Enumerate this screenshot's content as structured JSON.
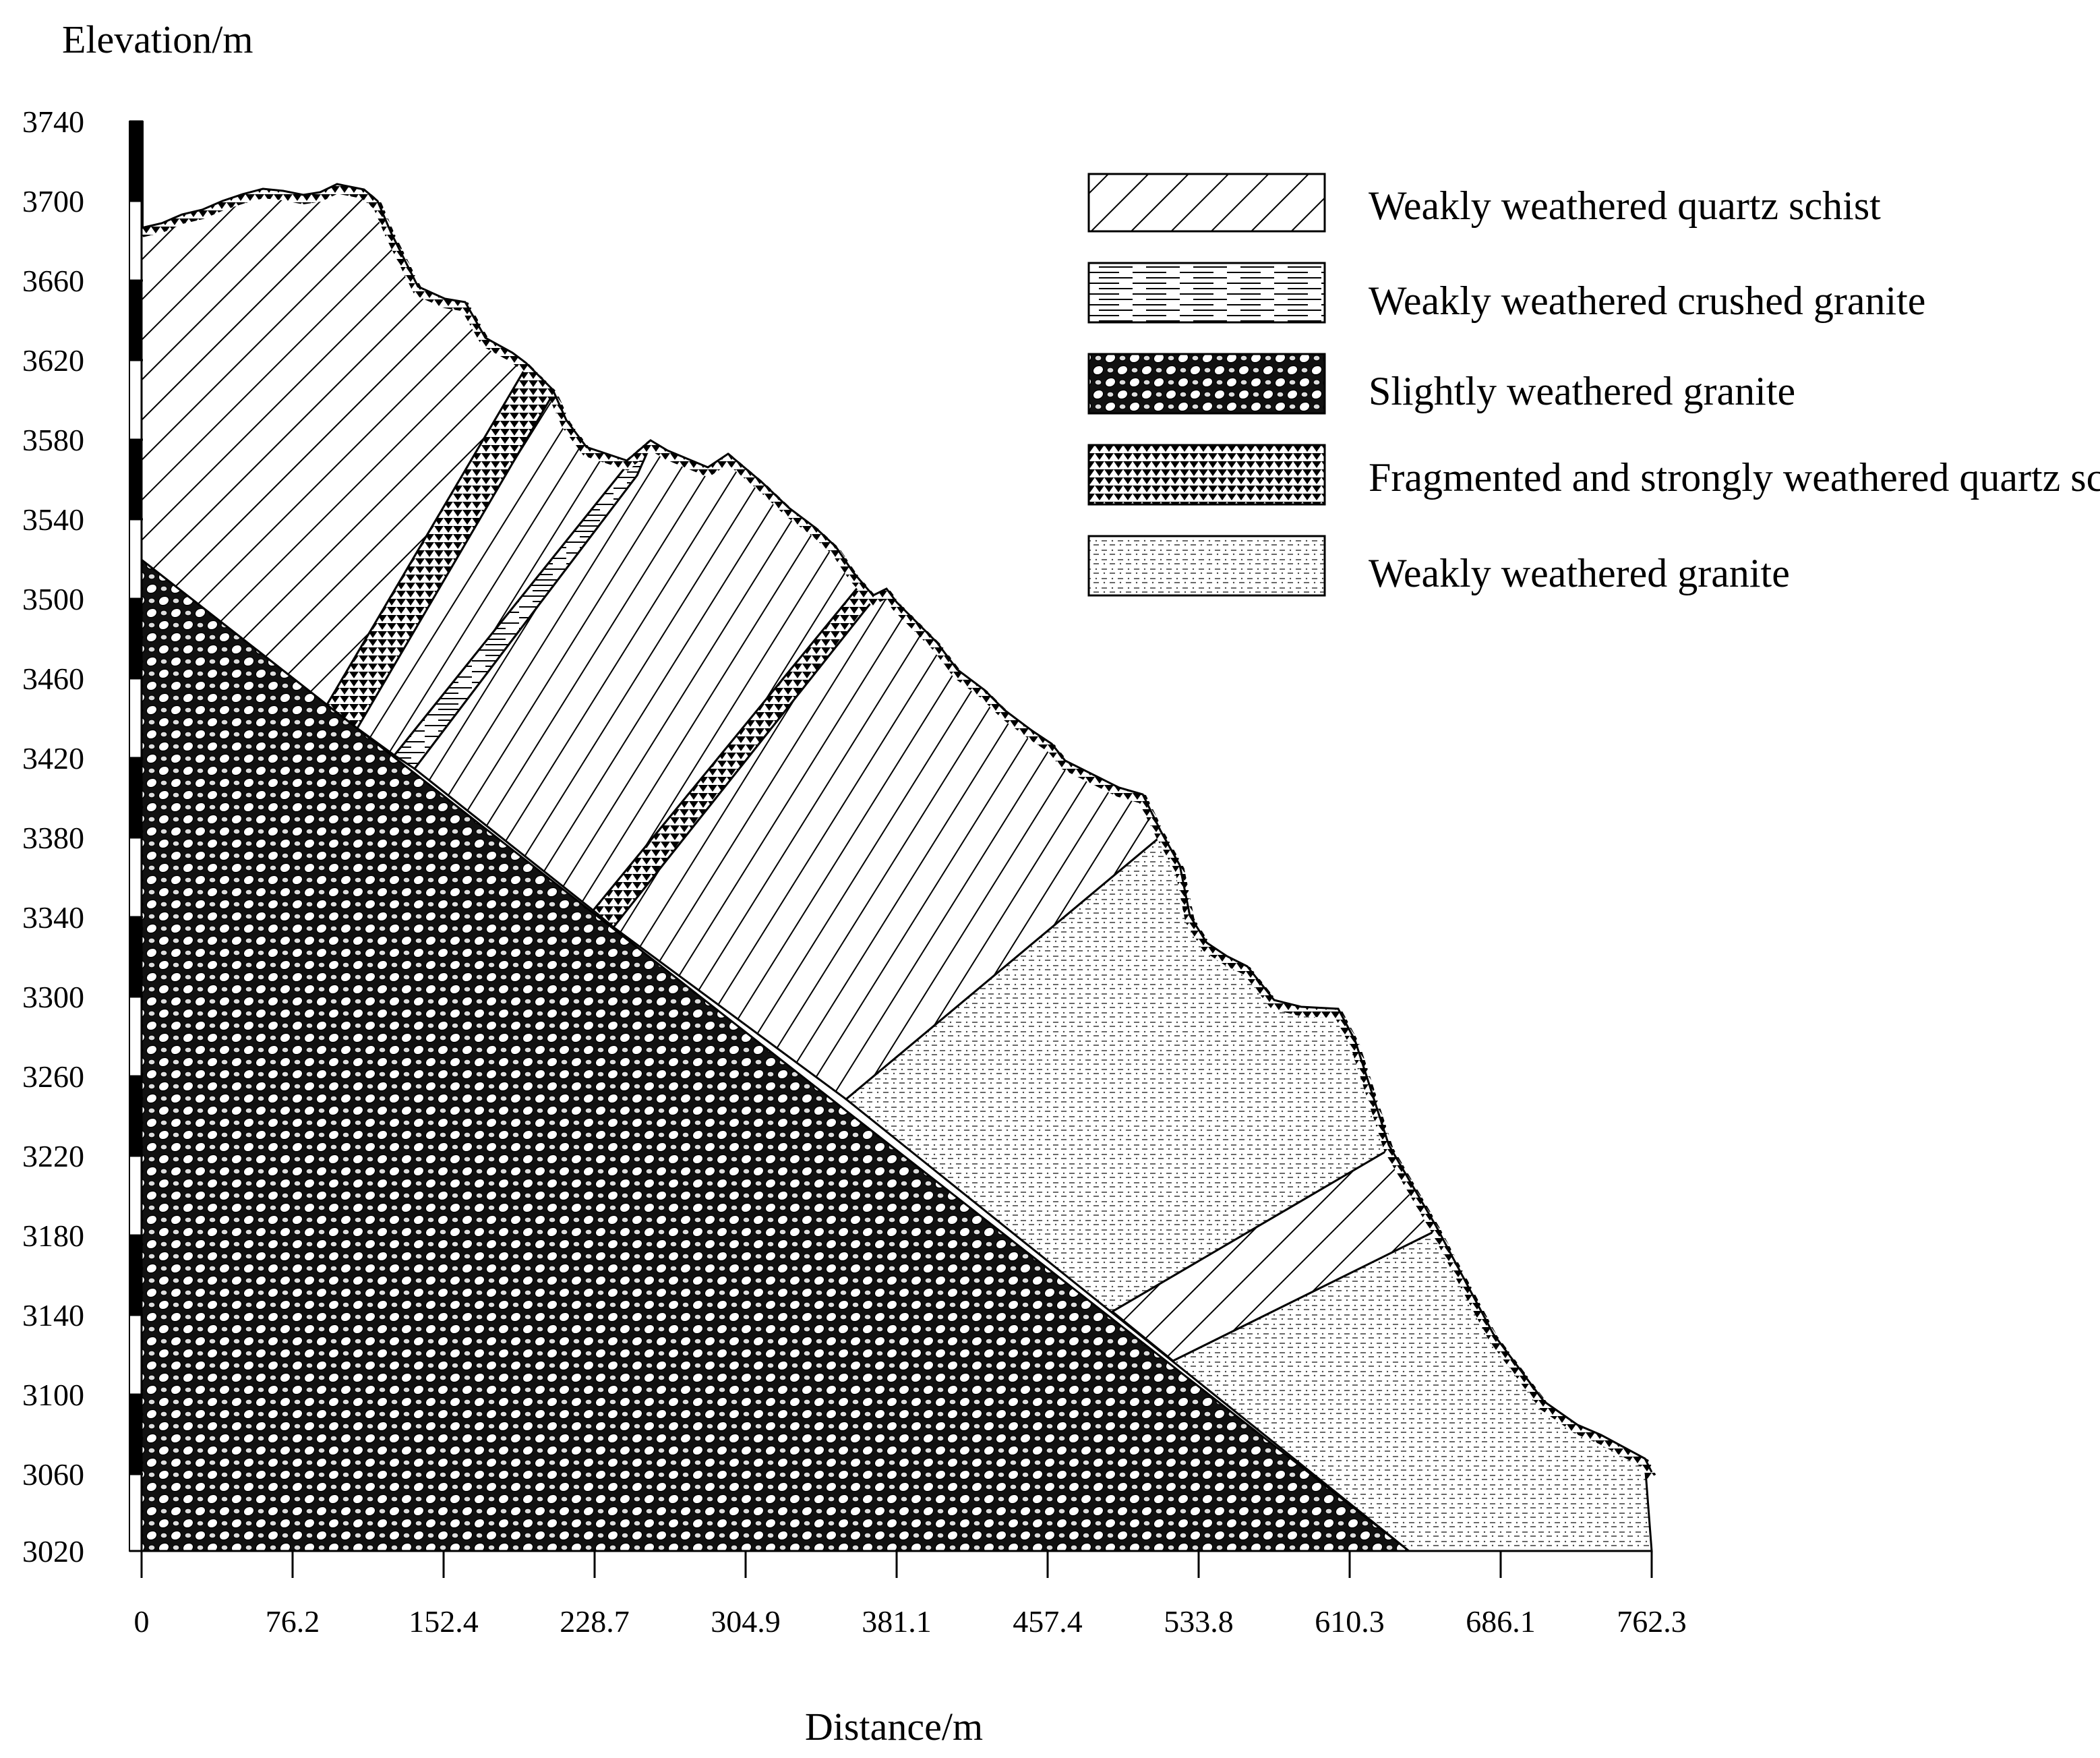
{
  "axes": {
    "y_label": "Elevation/m",
    "x_label": "Distance/m",
    "y_ticks": [
      "3740",
      "3700",
      "3660",
      "3620",
      "3580",
      "3540",
      "3500",
      "3460",
      "3420",
      "3380",
      "3340",
      "3300",
      "3260",
      "3220",
      "3180",
      "3140",
      "3100",
      "3060",
      "3020"
    ],
    "x_ticks": [
      "0",
      "76.2",
      "152.4",
      "228.7",
      "304.9",
      "381.1",
      "457.4",
      "533.8",
      "610.3",
      "686.1",
      "762.3"
    ]
  },
  "legend": [
    {
      "label": "Weakly weathered quartz schist",
      "pattern": "diagonal-hatch"
    },
    {
      "label": "Weakly weathered crushed granite",
      "pattern": "horizontal-lines"
    },
    {
      "label": "Slightly weathered granite",
      "pattern": "pebble-circles"
    },
    {
      "label": "Fragmented and strongly weathered quartz schist",
      "pattern": "triangle-dots"
    },
    {
      "label": "Weakly weathered granite",
      "pattern": "fine-dashes"
    }
  ]
}
